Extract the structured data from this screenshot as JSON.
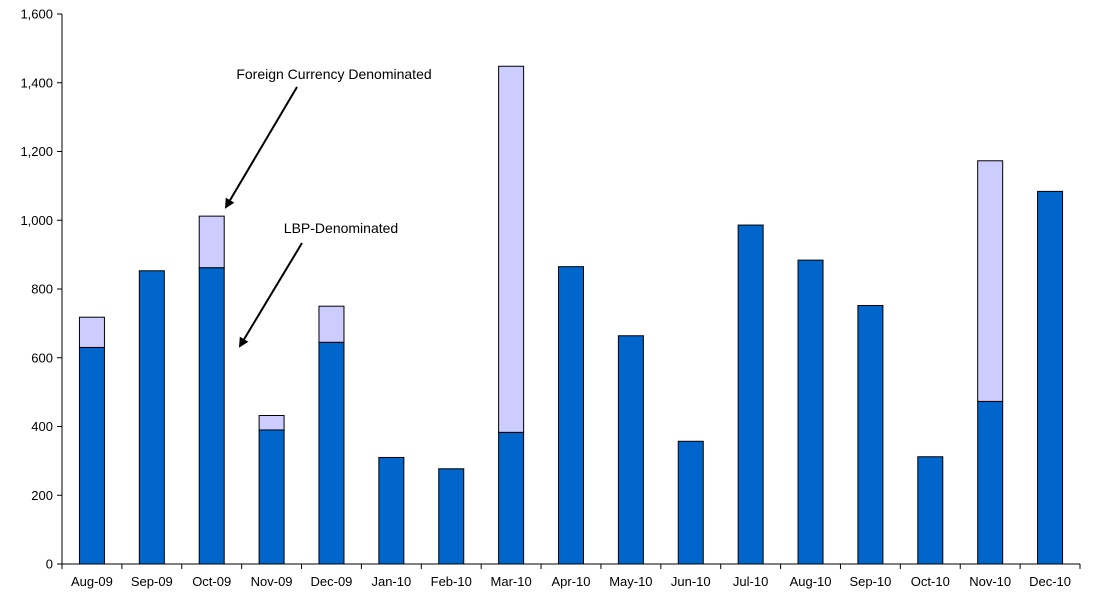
{
  "chart_data": {
    "type": "bar",
    "stacked": true,
    "categories": [
      "Aug-09",
      "Sep-09",
      "Oct-09",
      "Nov-09",
      "Dec-09",
      "Jan-10",
      "Feb-10",
      "Mar-10",
      "Apr-10",
      "May-10",
      "Jun-10",
      "Jul-10",
      "Aug-10",
      "Sep-10",
      "Oct-10",
      "Nov-10",
      "Dec-10"
    ],
    "series": [
      {
        "name": "LBP-Denominated",
        "color": "#0066cc",
        "values": [
          630,
          853,
          862,
          390,
          645,
          310,
          277,
          383,
          865,
          664,
          357,
          986,
          884,
          752,
          312,
          473,
          1084
        ]
      },
      {
        "name": "Foreign Currency Denominated",
        "color": "#ccccff",
        "values": [
          88,
          0,
          150,
          42,
          105,
          0,
          0,
          1065,
          0,
          0,
          0,
          0,
          0,
          0,
          0,
          700,
          0
        ]
      }
    ],
    "ylim": [
      0,
      1600
    ],
    "yticks": [
      0,
      200,
      400,
      600,
      800,
      1000,
      1200,
      1400,
      1600
    ],
    "ytick_labels": [
      "0",
      "200",
      "400",
      "600",
      "800",
      "1,000",
      "1,200",
      "1,400",
      "1,600"
    ],
    "grid": false,
    "title": "",
    "xlabel": "",
    "ylabel": "",
    "annotations": [
      {
        "text": "Foreign Currency Denominated",
        "points_to_category": "Oct-09",
        "points_to_value": 1012
      },
      {
        "text": "LBP-Denominated",
        "points_to_category": "Oct-09",
        "points_to_value": 630
      }
    ]
  }
}
